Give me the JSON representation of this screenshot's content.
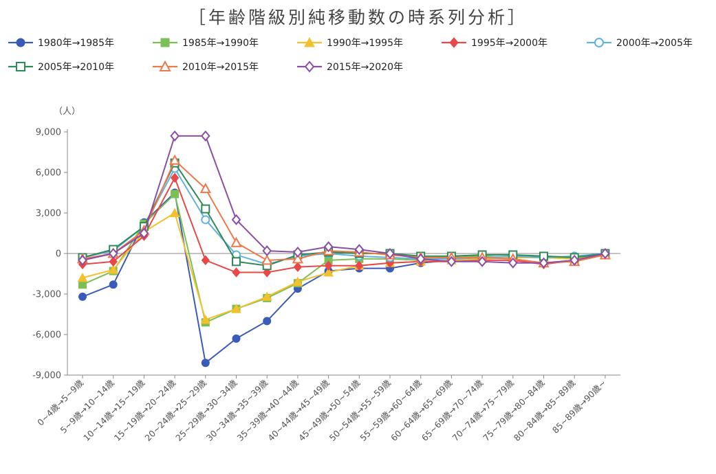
{
  "chart_data": {
    "type": "line",
    "title": "［年齢階級別純移動数の時系列分析］",
    "ylabel": "（人）",
    "ylim": [
      -9000,
      9000
    ],
    "yticks": [
      "9,000",
      "6,000",
      "3,000",
      "0",
      "-3,000",
      "-6,000",
      "-9,000"
    ],
    "ytick_values": [
      9000,
      6000,
      3000,
      0,
      -3000,
      -6000,
      -9000
    ],
    "categories": [
      "0~4歳→5~9歳",
      "5~9歳→10~14歳",
      "10~14歳→15~19歳",
      "15~19歳→20~24歳",
      "20~24歳→25~29歳",
      "25~29歳→30~34歳",
      "30~34歳→35~39歳",
      "35~39歳→40~44歳",
      "40~44歳→45~49歳",
      "45~49歳→50~54歳",
      "50~54歳→55~59歳",
      "55~59歳→60~64歳",
      "60~64歳→65~69歳",
      "65~69歳→70~74歳",
      "70~74歳→75~79歳",
      "75~79歳→80~84歳",
      "80~84歳→85~89歳",
      "85~89歳→90歳~"
    ],
    "legend_position": "top",
    "grid": false,
    "series": [
      {
        "name": "1980年→1985年",
        "color": "#3a5bb8",
        "marker": "circle-filled",
        "values": [
          -3200,
          -2300,
          2300,
          4500,
          -8100,
          -6300,
          -5000,
          -2600,
          -1300,
          -1100,
          -1100,
          -700,
          -500,
          -300,
          -300,
          -200,
          -300,
          -100
        ]
      },
      {
        "name": "1985年→1990年",
        "color": "#7cbf54",
        "marker": "square-filled",
        "values": [
          -2300,
          -1300,
          2200,
          4400,
          -5100,
          -4100,
          -3300,
          -2200,
          -500,
          -400,
          -400,
          -500,
          -300,
          -200,
          -300,
          -300,
          -400,
          -100
        ]
      },
      {
        "name": "1990年→1995年",
        "color": "#f3c02e",
        "marker": "triangle-filled",
        "values": [
          -1800,
          -1200,
          1600,
          3000,
          -4900,
          -4100,
          -3200,
          -2100,
          -1400,
          -900,
          -700,
          -600,
          -500,
          -400,
          -300,
          -300,
          -400,
          -100
        ]
      },
      {
        "name": "1995年→2000年",
        "color": "#e84848",
        "marker": "diamond-filled",
        "values": [
          -800,
          -600,
          1300,
          5600,
          -500,
          -1400,
          -1400,
          -1000,
          -900,
          -900,
          -700,
          -600,
          -600,
          -500,
          -500,
          -800,
          -500,
          -100
        ]
      },
      {
        "name": "2000年→2005年",
        "color": "#5fb3e0",
        "marker": "circle-open",
        "values": [
          -300,
          200,
          2000,
          6300,
          2500,
          -100,
          -800,
          -200,
          0,
          -200,
          -300,
          -400,
          -400,
          -300,
          -200,
          -300,
          -200,
          0
        ]
      },
      {
        "name": "2005年→2010年",
        "color": "#2e8a56",
        "marker": "square-open",
        "values": [
          -300,
          300,
          2000,
          6700,
          3300,
          -600,
          -900,
          -100,
          100,
          0,
          0,
          -200,
          -200,
          -100,
          -100,
          -200,
          -300,
          0
        ]
      },
      {
        "name": "2010年→2015年",
        "color": "#f07848",
        "marker": "triangle-open",
        "values": [
          -400,
          0,
          1700,
          6900,
          4800,
          800,
          -500,
          -400,
          200,
          100,
          -100,
          -300,
          -300,
          -300,
          -400,
          -700,
          -600,
          -100
        ]
      },
      {
        "name": "2015年→2020年",
        "color": "#8a4ea6",
        "marker": "diamond-open",
        "values": [
          -500,
          0,
          1500,
          8700,
          8700,
          2500,
          200,
          100,
          500,
          300,
          0,
          -400,
          -600,
          -600,
          -700,
          -700,
          -500,
          0
        ]
      }
    ]
  }
}
